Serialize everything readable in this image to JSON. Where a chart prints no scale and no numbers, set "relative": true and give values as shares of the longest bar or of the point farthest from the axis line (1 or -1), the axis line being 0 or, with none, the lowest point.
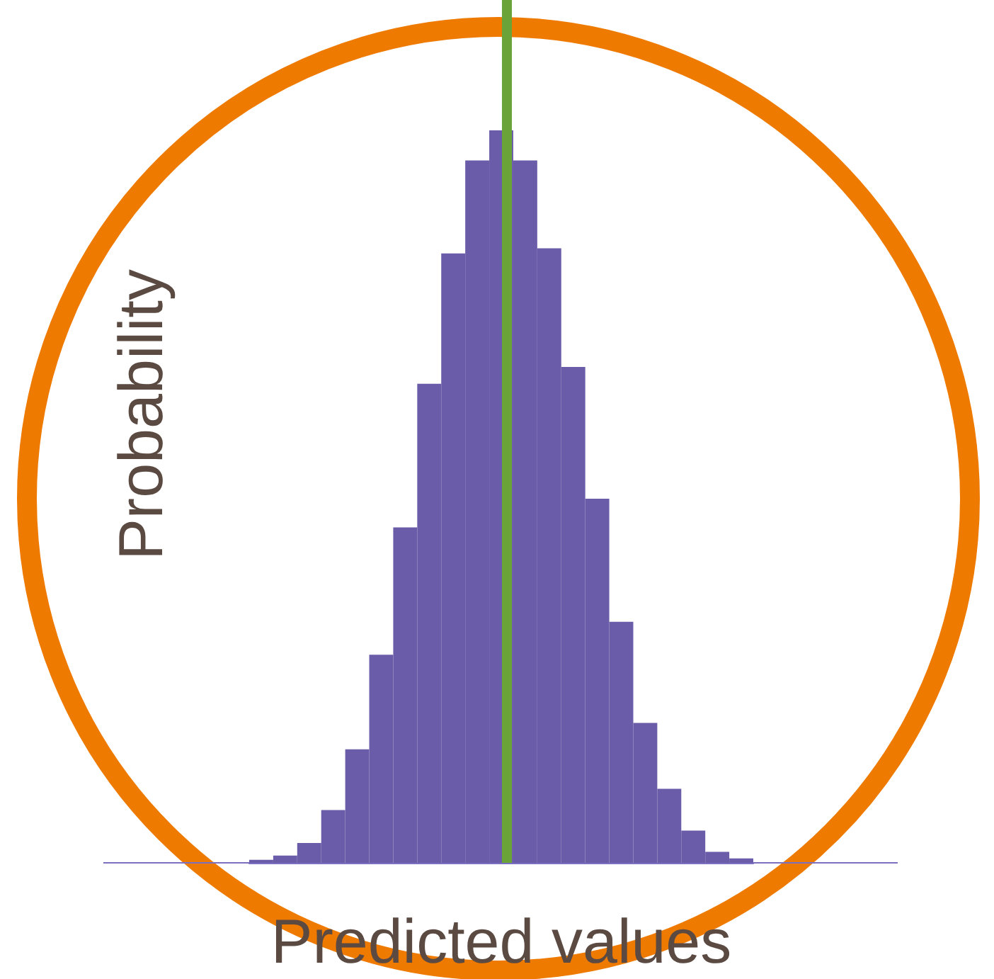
{
  "chart_data": {
    "type": "bar",
    "relative": true,
    "xlabel": "Predicted values",
    "ylabel": "Probability",
    "categories": [
      null,
      null,
      null,
      null,
      null,
      null,
      null,
      null,
      null,
      null,
      null,
      null,
      null,
      null,
      null,
      null,
      null,
      null,
      null,
      null,
      null
    ],
    "values": [
      0.004,
      0.01,
      0.027,
      0.072,
      0.155,
      0.284,
      0.458,
      0.654,
      0.832,
      0.959,
      1,
      0.959,
      0.839,
      0.677,
      0.497,
      0.329,
      0.191,
      0.101,
      0.044,
      0.015,
      0.006
    ],
    "color": "#6a5ca8",
    "grid": false
  }
}
